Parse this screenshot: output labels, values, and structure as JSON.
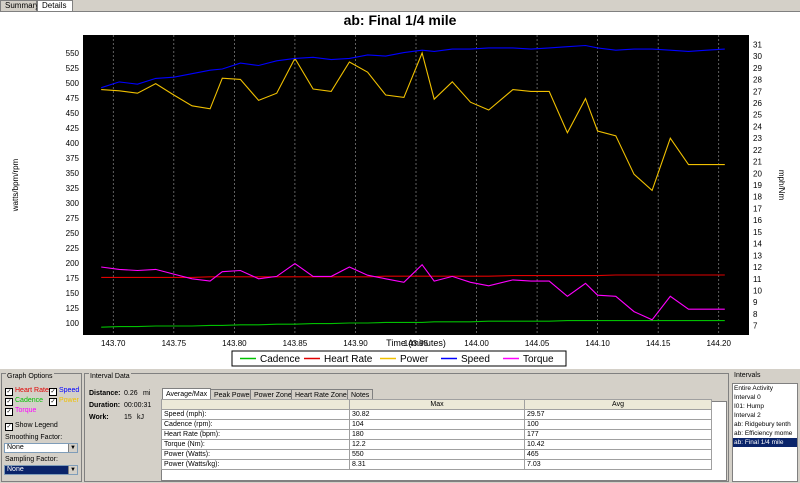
{
  "tabs": [
    {
      "label": "Summary",
      "active": false
    },
    {
      "label": "Details",
      "active": true
    }
  ],
  "chart_data": {
    "type": "line",
    "title": "ab: Final 1/4 mile",
    "xlabel": "Time (minutes)",
    "ylabel": "watts/bpm/rpm",
    "y2label": "mph/Nm",
    "xlim": [
      143.675,
      144.225
    ],
    "ylim": [
      80,
      580
    ],
    "y2lim": [
      6.2,
      31.8
    ],
    "x_ticks": [
      "143.70",
      "143.75",
      "143.80",
      "143.85",
      "143.90",
      "143.95",
      "144.00",
      "144.05",
      "144.10",
      "144.15",
      "144.20"
    ],
    "x_tick_values": [
      143.7,
      143.75,
      143.8,
      143.85,
      143.9,
      143.95,
      144.0,
      144.05,
      144.1,
      144.15,
      144.2
    ],
    "y_ticks": [
      "550",
      "525",
      "500",
      "475",
      "450",
      "425",
      "400",
      "375",
      "350",
      "325",
      "300",
      "275",
      "250",
      "225",
      "200",
      "175",
      "150",
      "125",
      "100"
    ],
    "y_tick_values": [
      550,
      525,
      500,
      475,
      450,
      425,
      400,
      375,
      350,
      325,
      300,
      275,
      250,
      225,
      200,
      175,
      150,
      125,
      100
    ],
    "y2_ticks": [
      "31",
      "30",
      "29",
      "28",
      "27",
      "26",
      "25",
      "24",
      "23",
      "22",
      "21",
      "20",
      "19",
      "18",
      "17",
      "16",
      "15",
      "14",
      "13",
      "12",
      "11",
      "10",
      "9",
      "8",
      "7"
    ],
    "y2_tick_values": [
      31,
      30,
      29,
      28,
      27,
      26,
      25,
      24,
      23,
      22,
      21,
      20,
      19,
      18,
      17,
      16,
      15,
      14,
      13,
      12,
      11,
      10,
      9,
      8,
      7
    ],
    "grid": true,
    "legend_position": "bottom",
    "x": [
      143.69,
      143.705,
      143.72,
      143.735,
      143.75,
      143.765,
      143.78,
      143.79,
      143.805,
      143.82,
      143.835,
      143.85,
      143.865,
      143.88,
      143.895,
      143.91,
      143.925,
      143.94,
      143.955,
      143.965,
      143.98,
      143.995,
      144.01,
      144.03,
      144.045,
      144.06,
      144.075,
      144.09,
      144.1,
      144.115,
      144.13,
      144.145,
      144.16,
      144.175,
      144.19,
      144.205
    ],
    "series": [
      {
        "name": "Cadence",
        "color": "#00c000",
        "axis": "left",
        "values": [
          93,
          94,
          94,
          95,
          95,
          95,
          96,
          96,
          97,
          97,
          98,
          98,
          99,
          99,
          100,
          100,
          101,
          101,
          101,
          102,
          102,
          102,
          103,
          103,
          103,
          103,
          104,
          104,
          104,
          104,
          104,
          104,
          104,
          104,
          104,
          104
        ]
      },
      {
        "name": "Heart Rate",
        "color": "#e00000",
        "axis": "left",
        "values": [
          176,
          176,
          176,
          176,
          176,
          176,
          177,
          177,
          177,
          177,
          177,
          177,
          177,
          177,
          177,
          177,
          178,
          178,
          178,
          178,
          178,
          178,
          178,
          179,
          179,
          179,
          179,
          179,
          179,
          180,
          180,
          180,
          180,
          180,
          180,
          180
        ]
      },
      {
        "name": "Power",
        "color": "#f0c000",
        "axis": "left",
        "values": [
          489,
          487,
          483,
          499,
          480,
          462,
          457,
          508,
          506,
          471,
          483,
          541,
          490,
          486,
          535,
          518,
          480,
          476,
          550,
          473,
          502,
          468,
          455,
          489,
          486,
          486,
          417,
          474,
          420,
          412,
          348,
          321,
          408,
          364,
          364,
          364
        ]
      },
      {
        "name": "Speed",
        "color": "#0000ff",
        "axis": "right",
        "values": [
          27.3,
          27.8,
          27.6,
          28.1,
          28.2,
          28.5,
          28.8,
          28.9,
          29.4,
          29.2,
          29.6,
          29.8,
          29.9,
          29.7,
          29.8,
          30.1,
          30.0,
          30.3,
          30.5,
          30.4,
          30.6,
          30.6,
          30.7,
          30.7,
          30.6,
          30.7,
          30.8,
          30.9,
          30.7,
          30.5,
          30.6,
          30.6,
          30.5,
          30.4,
          30.5,
          30.6
        ]
      },
      {
        "name": "Torque",
        "color": "#ff00ff",
        "axis": "right",
        "values": [
          12.0,
          11.8,
          11.7,
          11.8,
          11.4,
          11.0,
          10.8,
          11.6,
          11.7,
          11.0,
          11.2,
          12.3,
          11.2,
          11.2,
          12.0,
          11.3,
          11.0,
          10.7,
          12.2,
          10.8,
          11.2,
          10.7,
          10.4,
          10.9,
          10.8,
          10.8,
          9.5,
          10.6,
          9.6,
          9.5,
          8.2,
          7.5,
          9.5,
          8.4,
          8.4,
          8.4
        ]
      }
    ]
  },
  "graph_options": {
    "title": "Graph Options",
    "checks": [
      {
        "label": "Heart Rate",
        "color": "#e00000",
        "checked": true
      },
      {
        "label": "Speed",
        "color": "#0000ff",
        "checked": true
      },
      {
        "label": "Cadence",
        "color": "#00c000",
        "checked": true
      },
      {
        "label": "Power",
        "color": "#f0c000",
        "checked": true
      },
      {
        "label": "Torque",
        "color": "#ff00ff",
        "checked": true
      }
    ],
    "show_legend": "Show Legend",
    "smoothing_label": "Smoothing Factor:",
    "smoothing_value": "None",
    "sampling_label": "Sampling Factor:",
    "sampling_value": "None"
  },
  "interval_data": {
    "title": "Interval Data",
    "distance_label": "Distance:",
    "distance_value": "0.26",
    "distance_unit": "mi",
    "duration_label": "Duration:",
    "duration_value": "00:00:31",
    "work_label": "Work:",
    "work_value": "15",
    "work_unit": "kJ",
    "tabs": [
      "Average/Max",
      "Peak Power",
      "Power Zone",
      "Heart Rate Zone",
      "Notes"
    ],
    "columns": [
      "",
      "Max",
      "Avg"
    ],
    "rows": [
      {
        "label": "Speed (mph):",
        "max": "30.82",
        "avg": "29.57"
      },
      {
        "label": "Cadence (rpm):",
        "max": "104",
        "avg": "100"
      },
      {
        "label": "Heart Rate (bpm):",
        "max": "180",
        "avg": "177"
      },
      {
        "label": "Torque (Nm):",
        "max": "12.2",
        "avg": "10.42"
      },
      {
        "label": "Power (Watts):",
        "max": "550",
        "avg": "465"
      },
      {
        "label": "Power (Watts/kg):",
        "max": "8.31",
        "avg": "7.03"
      }
    ]
  },
  "intervals": {
    "title": "Intervals",
    "items": [
      "Entire Activity",
      "Interval 0",
      "I01: Hump",
      "Interval 2",
      "ab: Ridgebury tenth",
      "ab: Efficiency mome",
      "ab: Final 1/4 mile"
    ],
    "selected_index": 6
  }
}
